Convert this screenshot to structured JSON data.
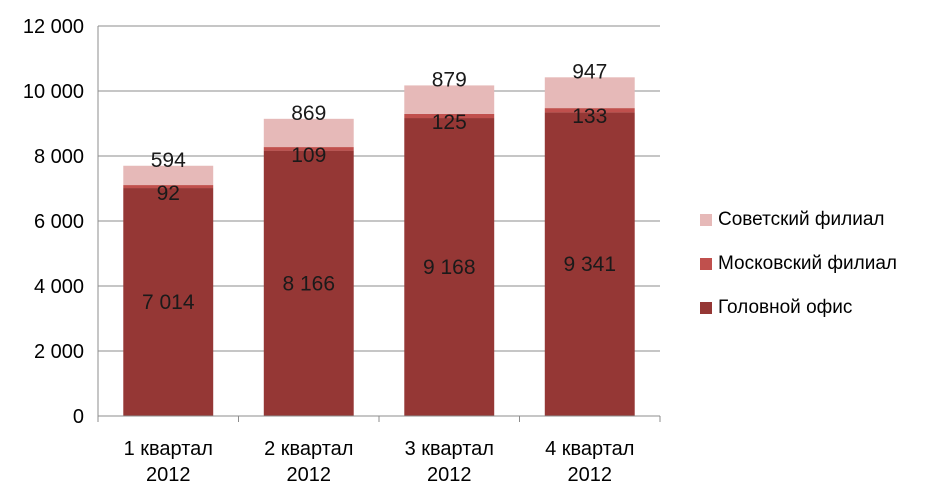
{
  "chart_data": {
    "type": "bar",
    "stacked": true,
    "categories": [
      [
        "1 квартал",
        "2012"
      ],
      [
        "2 квартал",
        "2012"
      ],
      [
        "3 квартал",
        "2012"
      ],
      [
        "4 квартал",
        "2012"
      ]
    ],
    "series": [
      {
        "name": "Головной офис",
        "values": [
          7014,
          8166,
          9168,
          9341
        ],
        "labels": [
          "7 014",
          "8 166",
          "9 168",
          "9 341"
        ],
        "color": "#953735"
      },
      {
        "name": "Московский филиал",
        "values": [
          92,
          109,
          125,
          133
        ],
        "labels": [
          "92",
          "109",
          "125",
          "133"
        ],
        "color": "#C0504D"
      },
      {
        "name": "Советский филиал",
        "values": [
          594,
          869,
          879,
          947
        ],
        "labels": [
          "594",
          "869",
          "879",
          "947"
        ],
        "color": "#E6B9B8"
      }
    ],
    "yticks": [
      "0",
      "2 000",
      "4 000",
      "6 000",
      "8 000",
      "10 000",
      "12 000"
    ],
    "ylim": [
      0,
      12000
    ],
    "grid": true,
    "legend_position": "right"
  }
}
